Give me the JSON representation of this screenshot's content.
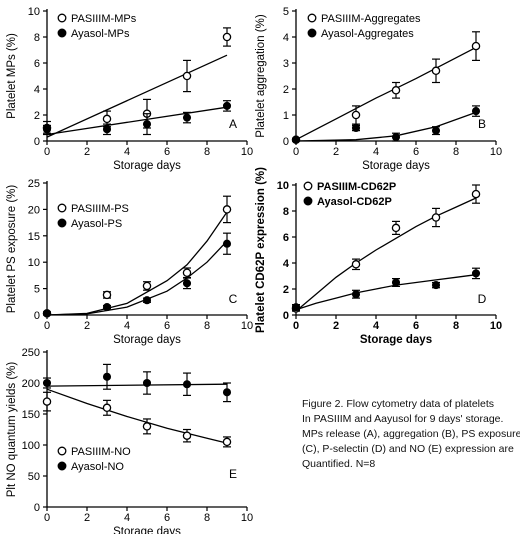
{
  "caption": {
    "lines": [
      "Figure 2. Flow cytometry data of platelets",
      "In PASIIIM and Aayusol for 9 days' storage.",
      "MPs release (A), aggregation (B), PS exposure",
      "(C), P-selectin (D) and NO (E) expression are",
      "Quantified. N=8"
    ]
  },
  "chart_data": [
    {
      "type": "scatter",
      "panel_label": "A",
      "title": "",
      "xlabel": "Storage days",
      "ylabel": "Platelet MPs (%)",
      "xlim": [
        0,
        10
      ],
      "ylim": [
        0,
        10
      ],
      "xticks": [
        0,
        2,
        4,
        6,
        8,
        10
      ],
      "yticks": [
        0,
        2,
        4,
        6,
        8,
        10
      ],
      "legend_position": "top-left",
      "series": [
        {
          "name": "PASIIIM-MPs",
          "marker": "open-circle",
          "fit": "linear",
          "x": [
            0,
            3,
            5,
            7,
            9
          ],
          "y": [
            1.0,
            1.7,
            2.1,
            5.0,
            8.0
          ],
          "error": [
            0.5,
            0.6,
            1.1,
            1.2,
            0.7
          ],
          "fit_points": [
            [
              0,
              0.3
            ],
            [
              9,
              6.6
            ]
          ]
        },
        {
          "name": "Ayasol-MPs",
          "marker": "filled-circle",
          "fit": "linear",
          "x": [
            0,
            3,
            5,
            7,
            9
          ],
          "y": [
            0.9,
            0.9,
            1.3,
            1.8,
            2.7
          ],
          "error": [
            0.3,
            0.4,
            0.8,
            0.4,
            0.4
          ],
          "fit_points": [
            [
              0,
              0.5
            ],
            [
              9,
              2.6
            ]
          ]
        }
      ]
    },
    {
      "type": "scatter",
      "panel_label": "B",
      "title": "",
      "xlabel": "Storage days",
      "ylabel": "Platelet aggregation (%)",
      "xlim": [
        0,
        10
      ],
      "ylim": [
        0,
        5
      ],
      "xticks": [
        0,
        2,
        4,
        6,
        8,
        10
      ],
      "yticks": [
        0,
        1,
        2,
        3,
        4,
        5
      ],
      "legend_position": "top-left",
      "series": [
        {
          "name": "PASIIIM-Aggregates",
          "marker": "open-circle",
          "fit": "curve",
          "x": [
            0,
            3,
            5,
            7,
            9
          ],
          "y": [
            0.05,
            1.0,
            1.95,
            2.7,
            3.65
          ],
          "error": [
            0.05,
            0.35,
            0.3,
            0.45,
            0.55
          ],
          "fit_points": [
            [
              0,
              0.05
            ],
            [
              2,
              0.85
            ],
            [
              4,
              1.65
            ],
            [
              6,
              2.4
            ],
            [
              8,
              3.2
            ],
            [
              9,
              3.6
            ]
          ]
        },
        {
          "name": "Ayasol-Aggregates",
          "marker": "filled-circle",
          "fit": "curve",
          "x": [
            0,
            3,
            5,
            7,
            9
          ],
          "y": [
            0.05,
            0.5,
            0.15,
            0.4,
            1.15
          ],
          "error": [
            0.05,
            0.1,
            0.15,
            0.15,
            0.2
          ],
          "fit_points": [
            [
              0,
              0.0
            ],
            [
              3,
              0.05
            ],
            [
              5,
              0.2
            ],
            [
              7,
              0.55
            ],
            [
              9,
              1.1
            ]
          ]
        }
      ]
    },
    {
      "type": "scatter",
      "panel_label": "C",
      "title": "",
      "xlabel": "Storage days",
      "ylabel": "Platelet PS exposure (%)",
      "xlim": [
        0,
        10
      ],
      "ylim": [
        0,
        25
      ],
      "xticks": [
        0,
        2,
        4,
        6,
        8,
        10
      ],
      "yticks": [
        0,
        5,
        10,
        15,
        20,
        25
      ],
      "legend_position": "top-left",
      "series": [
        {
          "name": "PASIIIM-PS",
          "marker": "open-circle",
          "fit": "curve",
          "x": [
            0,
            3,
            5,
            7,
            9
          ],
          "y": [
            0.3,
            3.8,
            5.5,
            8.0,
            20.0
          ],
          "error": [
            0.3,
            0.6,
            0.8,
            0.9,
            2.5
          ],
          "fit_points": [
            [
              0,
              0.0
            ],
            [
              2,
              0.3
            ],
            [
              4,
              2.2
            ],
            [
              6,
              6.5
            ],
            [
              7,
              9.5
            ],
            [
              8,
              14.0
            ],
            [
              9,
              19.5
            ]
          ]
        },
        {
          "name": "Ayasol-PS",
          "marker": "filled-circle",
          "fit": "curve",
          "x": [
            0,
            3,
            5,
            7,
            9
          ],
          "y": [
            0.3,
            1.5,
            2.8,
            6.0,
            13.5
          ],
          "error": [
            0.2,
            0.3,
            0.4,
            1.0,
            2.0
          ],
          "fit_points": [
            [
              0,
              0.0
            ],
            [
              2,
              0.2
            ],
            [
              4,
              1.5
            ],
            [
              6,
              4.5
            ],
            [
              7,
              7.0
            ],
            [
              8,
              10.0
            ],
            [
              9,
              14.0
            ]
          ]
        }
      ]
    },
    {
      "type": "scatter",
      "panel_label": "D",
      "title": "",
      "xlabel": "Storage days",
      "ylabel": "Platelet CD62P expression (%)",
      "xlim": [
        0,
        10
      ],
      "ylim": [
        0,
        10
      ],
      "xticks": [
        0,
        2,
        4,
        6,
        8,
        10
      ],
      "yticks": [
        0,
        2,
        4,
        6,
        8,
        10
      ],
      "legend_position": "top-left",
      "series": [
        {
          "name": "PASIIIM-CD62P",
          "marker": "open-circle",
          "fit": "curve",
          "x": [
            0,
            3,
            5,
            7,
            9
          ],
          "y": [
            0.5,
            3.9,
            6.7,
            7.5,
            9.3
          ],
          "error": [
            0.2,
            0.4,
            0.5,
            0.7,
            0.7
          ],
          "fit_points": [
            [
              0,
              0.3
            ],
            [
              1,
              1.6
            ],
            [
              2,
              2.9
            ],
            [
              3,
              4.0
            ],
            [
              4,
              5.0
            ],
            [
              5,
              5.9
            ],
            [
              6,
              6.8
            ],
            [
              7,
              7.6
            ],
            [
              8,
              8.3
            ],
            [
              9,
              9.0
            ]
          ]
        },
        {
          "name": "Ayasol-CD62P",
          "marker": "filled-circle",
          "fit": "curve",
          "x": [
            0,
            3,
            5,
            7,
            9
          ],
          "y": [
            0.6,
            1.6,
            2.5,
            2.3,
            3.2
          ],
          "error": [
            0.2,
            0.3,
            0.3,
            0.2,
            0.4
          ],
          "fit_points": [
            [
              0,
              0.4
            ],
            [
              1,
              0.9
            ],
            [
              2,
              1.3
            ],
            [
              3,
              1.7
            ],
            [
              4,
              2.0
            ],
            [
              5,
              2.3
            ],
            [
              6,
              2.5
            ],
            [
              7,
              2.7
            ],
            [
              8,
              2.9
            ],
            [
              9,
              3.1
            ]
          ]
        }
      ]
    },
    {
      "type": "scatter",
      "panel_label": "E",
      "title": "",
      "xlabel": "Storage days",
      "ylabel": "Plt NO quantum yields (%)",
      "xlim": [
        0,
        10
      ],
      "ylim": [
        0,
        250
      ],
      "xticks": [
        0,
        2,
        4,
        6,
        8,
        10
      ],
      "yticks": [
        0,
        50,
        100,
        150,
        200,
        250
      ],
      "legend_position": "bottom-left",
      "series": [
        {
          "name": "PASIIIM-NO",
          "marker": "open-circle",
          "fit": "curve",
          "x": [
            0,
            3,
            5,
            7,
            9
          ],
          "y": [
            170,
            160,
            130,
            115,
            105
          ],
          "error": [
            15,
            12,
            12,
            10,
            8
          ],
          "fit_points": [
            [
              0,
              190
            ],
            [
              2,
              167
            ],
            [
              4,
              146
            ],
            [
              6,
              127
            ],
            [
              8,
              111
            ],
            [
              9,
              103
            ]
          ]
        },
        {
          "name": "Ayasol-NO",
          "marker": "filled-circle",
          "fit": "linear",
          "x": [
            0,
            3,
            5,
            7,
            9
          ],
          "y": [
            200,
            210,
            200,
            198,
            185
          ],
          "error": [
            8,
            20,
            18,
            18,
            15
          ],
          "fit_points": [
            [
              0,
              195
            ],
            [
              9,
              198
            ]
          ]
        }
      ]
    }
  ]
}
